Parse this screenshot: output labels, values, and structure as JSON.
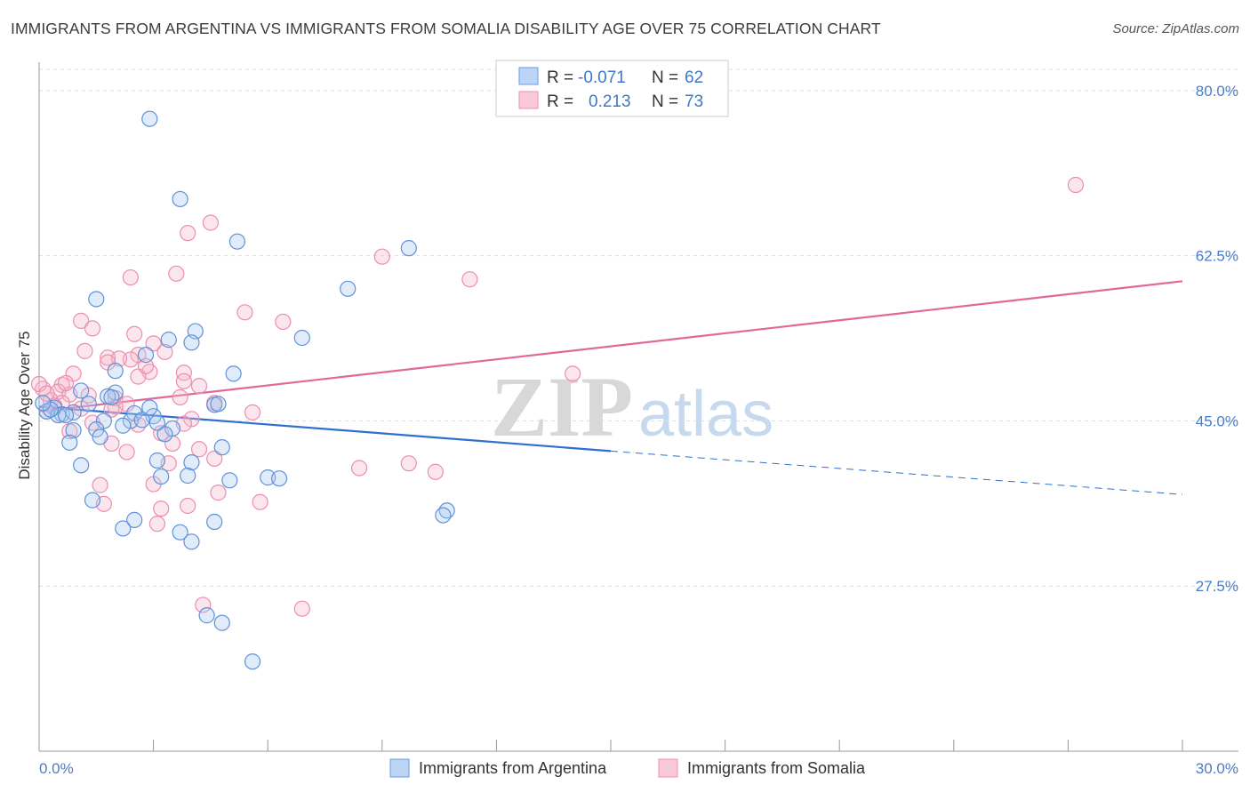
{
  "title": "IMMIGRANTS FROM ARGENTINA VS IMMIGRANTS FROM SOMALIA DISABILITY AGE OVER 75 CORRELATION CHART",
  "source": "Source: ZipAtlas.com",
  "legend": {
    "r_label": "R =",
    "n_label": "N =",
    "argentina": {
      "r": "-0.071",
      "n": "62"
    },
    "somalia": {
      "r": "0.213",
      "n": "73"
    }
  },
  "watermark": {
    "zip": "ZIP",
    "atlas": "atlas"
  },
  "chart_data": {
    "type": "scatter",
    "title": "IMMIGRANTS FROM ARGENTINA VS IMMIGRANTS FROM SOMALIA DISABILITY AGE OVER 75 CORRELATION CHART",
    "xlabel": "",
    "ylabel": "Disability Age Over 75",
    "xlim": [
      0,
      30
    ],
    "ylim": [
      10,
      83
    ],
    "x_tick_labels": [
      "0.0%",
      "30.0%"
    ],
    "y_tick_labels": [
      "80.0%",
      "62.5%",
      "45.0%",
      "27.5%"
    ],
    "y_ticks": [
      80,
      62.5,
      45,
      27.5
    ],
    "grid": true,
    "legend_position": "top-center",
    "colors": {
      "argentina": "#6a9be0",
      "somalia": "#ef8fb0",
      "argentina_line": "#2f6fd0",
      "somalia_line": "#e0689a"
    },
    "series": [
      {
        "name": "Immigrants from Argentina",
        "r": -0.071,
        "n": 62,
        "trend": {
          "x": [
            0,
            15
          ],
          "y": [
            46.5,
            41.8
          ],
          "dashed_to": [
            30,
            37.2
          ]
        },
        "points": [
          [
            2.9,
            77.0
          ],
          [
            3.7,
            68.5
          ],
          [
            5.2,
            64.0
          ],
          [
            9.7,
            63.3
          ],
          [
            8.1,
            59.0
          ],
          [
            1.5,
            57.9
          ],
          [
            4.1,
            54.5
          ],
          [
            6.9,
            53.8
          ],
          [
            3.4,
            53.6
          ],
          [
            4.0,
            53.3
          ],
          [
            2.8,
            52.0
          ],
          [
            2.0,
            50.3
          ],
          [
            5.1,
            50.0
          ],
          [
            1.1,
            48.2
          ],
          [
            2.0,
            48.0
          ],
          [
            1.8,
            47.6
          ],
          [
            1.3,
            46.8
          ],
          [
            0.4,
            46.4
          ],
          [
            0.2,
            46.0
          ],
          [
            0.6,
            45.7
          ],
          [
            0.9,
            45.9
          ],
          [
            0.5,
            45.6
          ],
          [
            0.3,
            46.2
          ],
          [
            2.5,
            45.8
          ],
          [
            3.0,
            45.5
          ],
          [
            1.7,
            45.0
          ],
          [
            2.4,
            45.0
          ],
          [
            4.6,
            46.7
          ],
          [
            2.9,
            46.4
          ],
          [
            2.2,
            44.5
          ],
          [
            3.5,
            44.2
          ],
          [
            1.5,
            44.1
          ],
          [
            0.9,
            44.0
          ],
          [
            1.6,
            43.3
          ],
          [
            3.3,
            43.6
          ],
          [
            0.8,
            42.7
          ],
          [
            4.8,
            42.2
          ],
          [
            3.1,
            40.8
          ],
          [
            4.0,
            40.6
          ],
          [
            1.1,
            40.3
          ],
          [
            3.2,
            39.1
          ],
          [
            3.9,
            39.2
          ],
          [
            6.0,
            39.0
          ],
          [
            6.3,
            38.9
          ],
          [
            5.0,
            38.7
          ],
          [
            1.4,
            36.6
          ],
          [
            10.7,
            35.5
          ],
          [
            10.6,
            35.0
          ],
          [
            2.5,
            34.5
          ],
          [
            4.6,
            34.3
          ],
          [
            2.2,
            33.6
          ],
          [
            3.7,
            33.2
          ],
          [
            4.0,
            32.2
          ],
          [
            4.4,
            24.4
          ],
          [
            4.8,
            23.6
          ],
          [
            5.6,
            19.5
          ],
          [
            0.7,
            45.6
          ],
          [
            1.9,
            47.5
          ],
          [
            0.1,
            46.9
          ],
          [
            4.7,
            46.8
          ],
          [
            3.1,
            44.8
          ],
          [
            2.7,
            45.1
          ]
        ]
      },
      {
        "name": "Immigrants from Somalia",
        "r": 0.213,
        "n": 73,
        "trend": {
          "x": [
            0,
            30
          ],
          "y": [
            46.0,
            59.8
          ]
        },
        "points": [
          [
            27.2,
            70.0
          ],
          [
            4.5,
            66.0
          ],
          [
            3.9,
            64.9
          ],
          [
            9.0,
            62.4
          ],
          [
            11.3,
            60.0
          ],
          [
            2.4,
            60.2
          ],
          [
            3.6,
            60.6
          ],
          [
            5.4,
            56.5
          ],
          [
            6.4,
            55.5
          ],
          [
            1.1,
            55.6
          ],
          [
            1.4,
            54.8
          ],
          [
            2.5,
            54.2
          ],
          [
            3.0,
            53.2
          ],
          [
            1.2,
            52.4
          ],
          [
            3.3,
            52.3
          ],
          [
            2.6,
            52.0
          ],
          [
            2.4,
            51.5
          ],
          [
            1.8,
            51.7
          ],
          [
            2.1,
            51.6
          ],
          [
            1.8,
            51.2
          ],
          [
            14.0,
            50.0
          ],
          [
            2.9,
            50.2
          ],
          [
            3.8,
            50.1
          ],
          [
            0.9,
            50.0
          ],
          [
            2.6,
            49.7
          ],
          [
            3.8,
            49.2
          ],
          [
            4.2,
            48.7
          ],
          [
            0.6,
            48.8
          ],
          [
            0.1,
            48.4
          ],
          [
            0.5,
            48.1
          ],
          [
            0.8,
            47.8
          ],
          [
            1.3,
            47.7
          ],
          [
            2.0,
            47.4
          ],
          [
            0.3,
            47.2
          ],
          [
            0.6,
            46.9
          ],
          [
            0.4,
            46.6
          ],
          [
            3.7,
            47.5
          ],
          [
            2.3,
            46.8
          ],
          [
            2.0,
            46.5
          ],
          [
            1.1,
            46.3
          ],
          [
            0.2,
            46.0
          ],
          [
            4.6,
            46.9
          ],
          [
            4.0,
            45.2
          ],
          [
            1.4,
            44.8
          ],
          [
            2.6,
            44.6
          ],
          [
            3.8,
            44.7
          ],
          [
            0.8,
            43.9
          ],
          [
            3.2,
            43.7
          ],
          [
            3.5,
            42.6
          ],
          [
            1.9,
            42.6
          ],
          [
            2.3,
            41.7
          ],
          [
            4.2,
            42.0
          ],
          [
            3.4,
            40.5
          ],
          [
            9.7,
            40.5
          ],
          [
            8.4,
            40.0
          ],
          [
            10.4,
            39.6
          ],
          [
            3.0,
            38.3
          ],
          [
            1.6,
            38.2
          ],
          [
            4.7,
            37.4
          ],
          [
            5.8,
            36.4
          ],
          [
            1.7,
            36.2
          ],
          [
            3.9,
            36.0
          ],
          [
            3.2,
            35.7
          ],
          [
            3.1,
            34.1
          ],
          [
            4.3,
            25.5
          ],
          [
            6.9,
            25.1
          ],
          [
            0.0,
            48.9
          ],
          [
            0.2,
            47.9
          ],
          [
            1.9,
            46.2
          ],
          [
            0.7,
            49.0
          ],
          [
            2.8,
            50.8
          ],
          [
            4.6,
            41.0
          ],
          [
            5.6,
            45.9
          ]
        ]
      }
    ]
  },
  "bottom_legend": {
    "argentina": "Immigrants from Argentina",
    "somalia": "Immigrants from Somalia"
  }
}
